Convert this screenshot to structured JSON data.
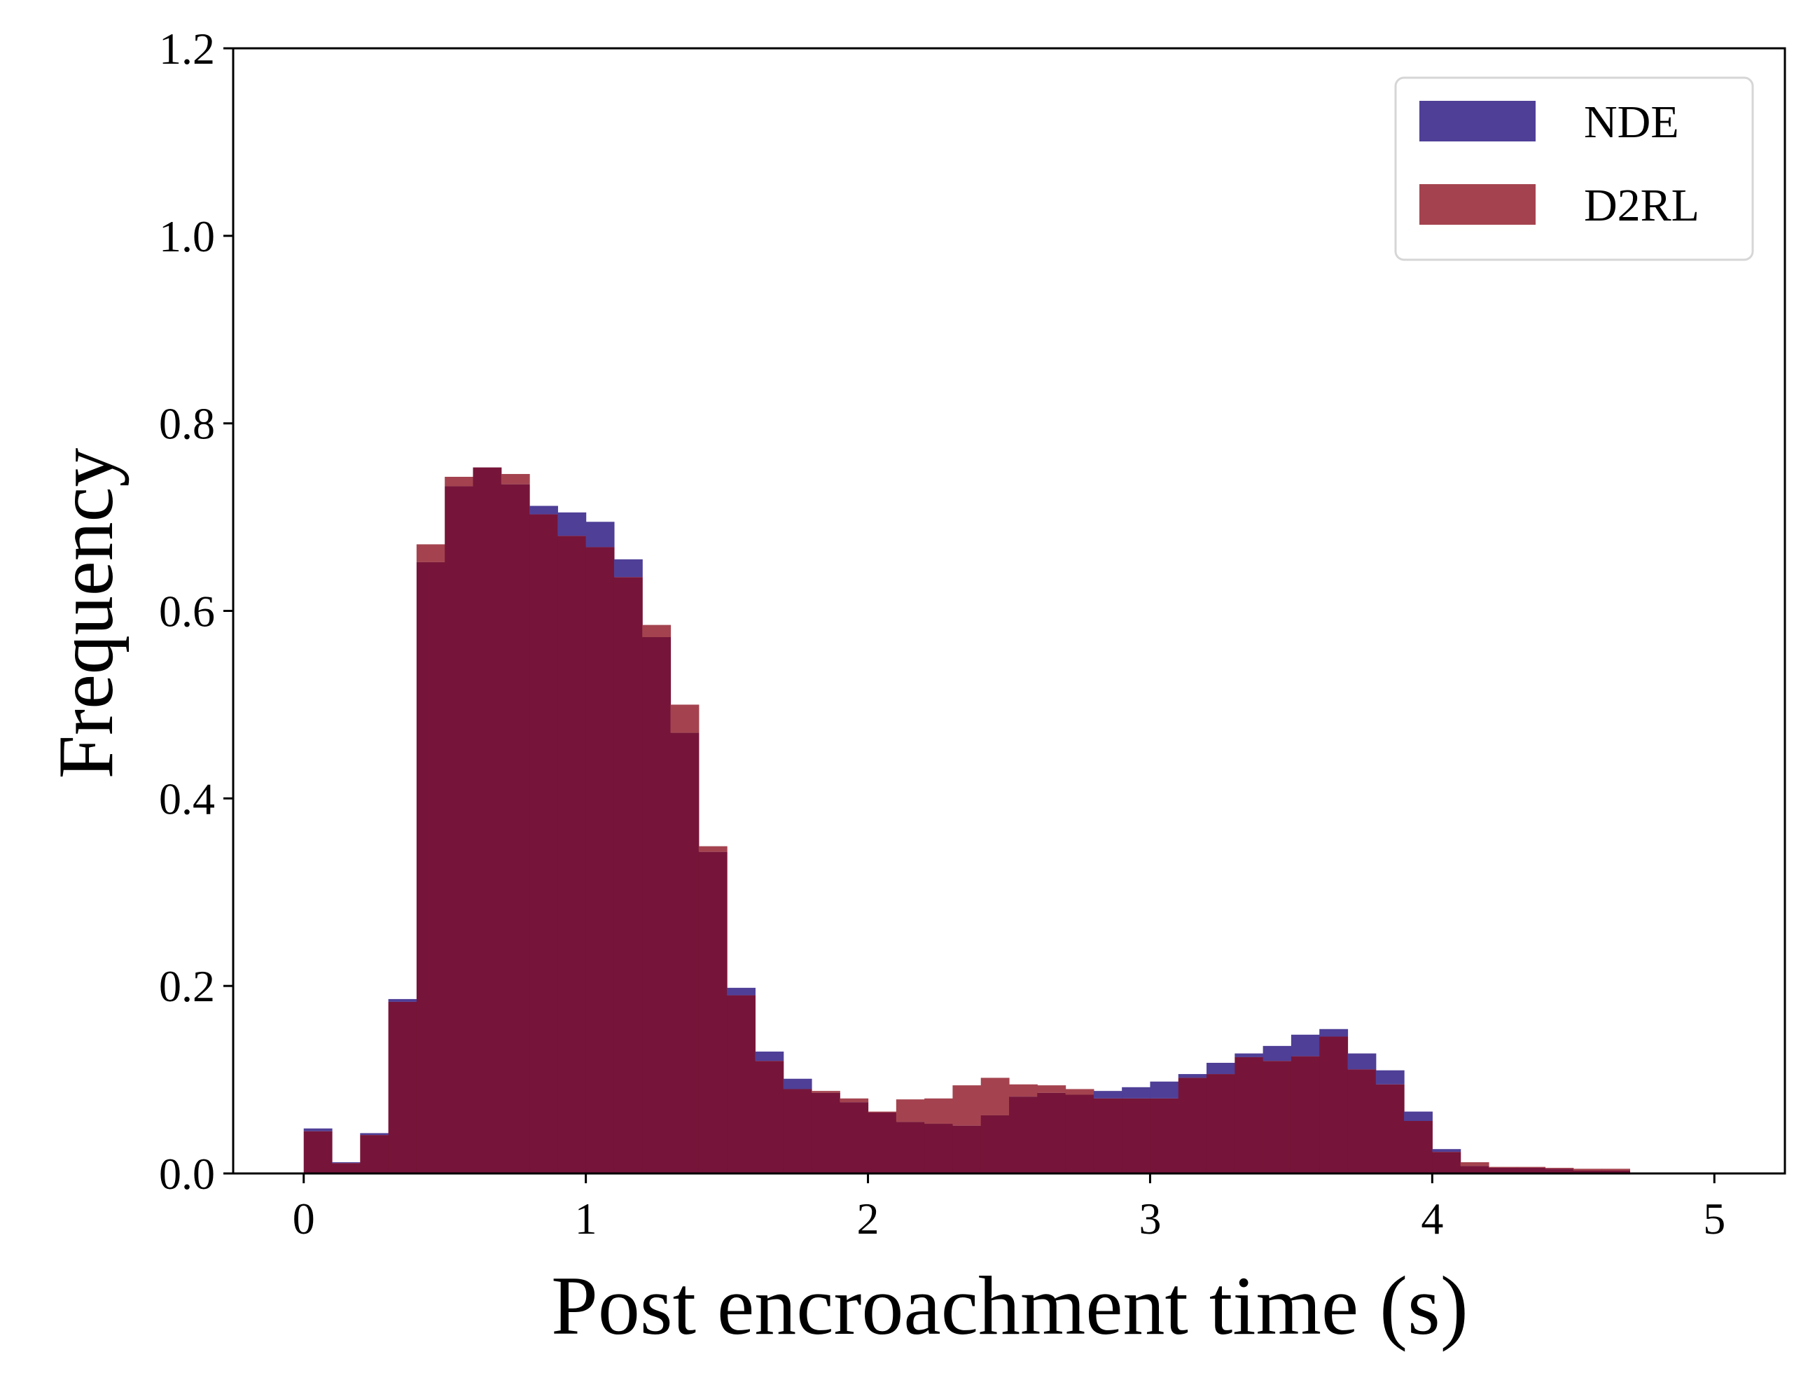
{
  "chart_data": {
    "type": "bar",
    "subtype": "histogram",
    "title": "",
    "xlabel": "Post encroachment time (s)",
    "ylabel": "Frequency",
    "xlim": [
      -0.25,
      5.25
    ],
    "ylim": [
      0,
      1.2
    ],
    "xticks": [
      0,
      1,
      2,
      3,
      4,
      5
    ],
    "xtick_labels": [
      "0",
      "1",
      "2",
      "3",
      "4",
      "5"
    ],
    "yticks": [
      0,
      0.2,
      0.4,
      0.6,
      0.8,
      1.0,
      1.2
    ],
    "ytick_labels": [
      "0.0",
      "0.2",
      "0.4",
      "0.6",
      "0.8",
      "1.0",
      "1.2"
    ],
    "grid": false,
    "legend_position": "top-right",
    "bin_width": 0.1,
    "bins_start": [
      0.0,
      0.1,
      0.2,
      0.3,
      0.4,
      0.5,
      0.6,
      0.7,
      0.8,
      0.9,
      1.0,
      1.1,
      1.2,
      1.3,
      1.4,
      1.5,
      1.6,
      1.7,
      1.8,
      1.9,
      2.0,
      2.1,
      2.2,
      2.3,
      2.4,
      2.5,
      2.6,
      2.7,
      2.8,
      2.9,
      3.0,
      3.1,
      3.2,
      3.3,
      3.4,
      3.5,
      3.6,
      3.7,
      3.8,
      3.9,
      4.0,
      4.1,
      4.2,
      4.3,
      4.4,
      4.5,
      4.6
    ],
    "series": [
      {
        "name": "NDE",
        "color": "#4f3f97",
        "values": [
          0.048,
          0.012,
          0.043,
          0.186,
          0.652,
          0.733,
          0.753,
          0.735,
          0.712,
          0.705,
          0.695,
          0.655,
          0.572,
          0.47,
          0.343,
          0.198,
          0.13,
          0.101,
          0.086,
          0.076,
          0.065,
          0.055,
          0.053,
          0.051,
          0.062,
          0.082,
          0.086,
          0.084,
          0.088,
          0.092,
          0.098,
          0.106,
          0.118,
          0.128,
          0.136,
          0.148,
          0.154,
          0.128,
          0.11,
          0.066,
          0.026,
          0.008,
          0.006,
          0.006,
          0.005,
          0.003,
          0.003
        ]
      },
      {
        "name": "D2RL",
        "color": "#a4434f",
        "values": [
          0.045,
          0.011,
          0.041,
          0.183,
          0.671,
          0.743,
          0.753,
          0.746,
          0.703,
          0.68,
          0.668,
          0.636,
          0.585,
          0.5,
          0.349,
          0.19,
          0.12,
          0.09,
          0.088,
          0.08,
          0.066,
          0.079,
          0.08,
          0.094,
          0.102,
          0.095,
          0.094,
          0.09,
          0.08,
          0.08,
          0.08,
          0.102,
          0.106,
          0.124,
          0.12,
          0.125,
          0.146,
          0.111,
          0.095,
          0.056,
          0.023,
          0.012,
          0.007,
          0.007,
          0.006,
          0.005,
          0.005
        ]
      }
    ],
    "overlap_color": "#761539"
  }
}
